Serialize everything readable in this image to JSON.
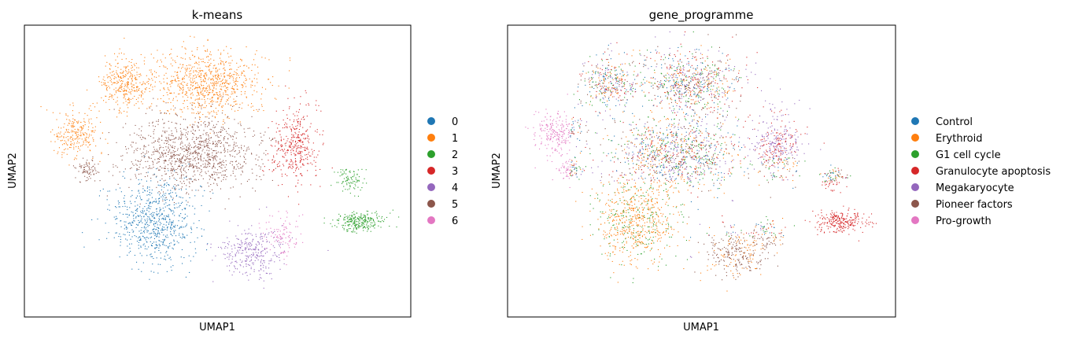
{
  "chart_data": [
    {
      "type": "scatter",
      "title": "k-means",
      "xlabel": "UMAP1",
      "ylabel": "UMAP2",
      "ticks": "none",
      "grid": false,
      "legend_placement": "right",
      "legend": [
        {
          "label": "0",
          "color": "#1f77b4"
        },
        {
          "label": "1",
          "color": "#ff7f0e"
        },
        {
          "label": "2",
          "color": "#2ca02c"
        },
        {
          "label": "3",
          "color": "#d62728"
        },
        {
          "label": "4",
          "color": "#9467bd"
        },
        {
          "label": "5",
          "color": "#8c564b"
        },
        {
          "label": "6",
          "color": "#e377c2"
        }
      ]
    },
    {
      "type": "scatter",
      "title": "gene_programme",
      "xlabel": "UMAP1",
      "ylabel": "UMAP2",
      "ticks": "none",
      "grid": false,
      "legend_placement": "right",
      "legend": [
        {
          "label": "Control",
          "color": "#1f77b4"
        },
        {
          "label": "Erythroid",
          "color": "#ff7f0e"
        },
        {
          "label": "G1 cell cycle",
          "color": "#2ca02c"
        },
        {
          "label": "Granulocyte apoptosis",
          "color": "#d62728"
        },
        {
          "label": "Megakaryocyte",
          "color": "#9467bd"
        },
        {
          "label": "Pioneer factors",
          "color": "#8c564b"
        },
        {
          "label": "Pro-growth",
          "color": "#e377c2"
        }
      ]
    }
  ]
}
